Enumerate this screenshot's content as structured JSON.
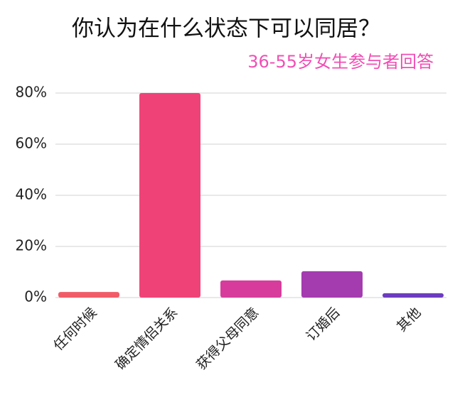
{
  "chart_data": {
    "type": "bar",
    "title": "你认为在什么状态下可以同居？",
    "subtitle": "36-55岁女生参与者回答",
    "categories": [
      "任何时候",
      "确定情侣关系",
      "获得父母同意",
      "订婚后",
      "其他"
    ],
    "values": [
      2.2,
      80,
      6.7,
      10.3,
      1.7
    ],
    "colors": [
      "#f15b67",
      "#ef4378",
      "#d73c9c",
      "#a43cb0",
      "#6c3cc0"
    ],
    "ylim": [
      0,
      80
    ],
    "yticks": [
      {
        "value": 0,
        "label": "0%"
      },
      {
        "value": 20,
        "label": "20%"
      },
      {
        "value": 40,
        "label": "40%"
      },
      {
        "value": 60,
        "label": "60%"
      },
      {
        "value": 80,
        "label": "80%"
      }
    ],
    "grid": true
  }
}
